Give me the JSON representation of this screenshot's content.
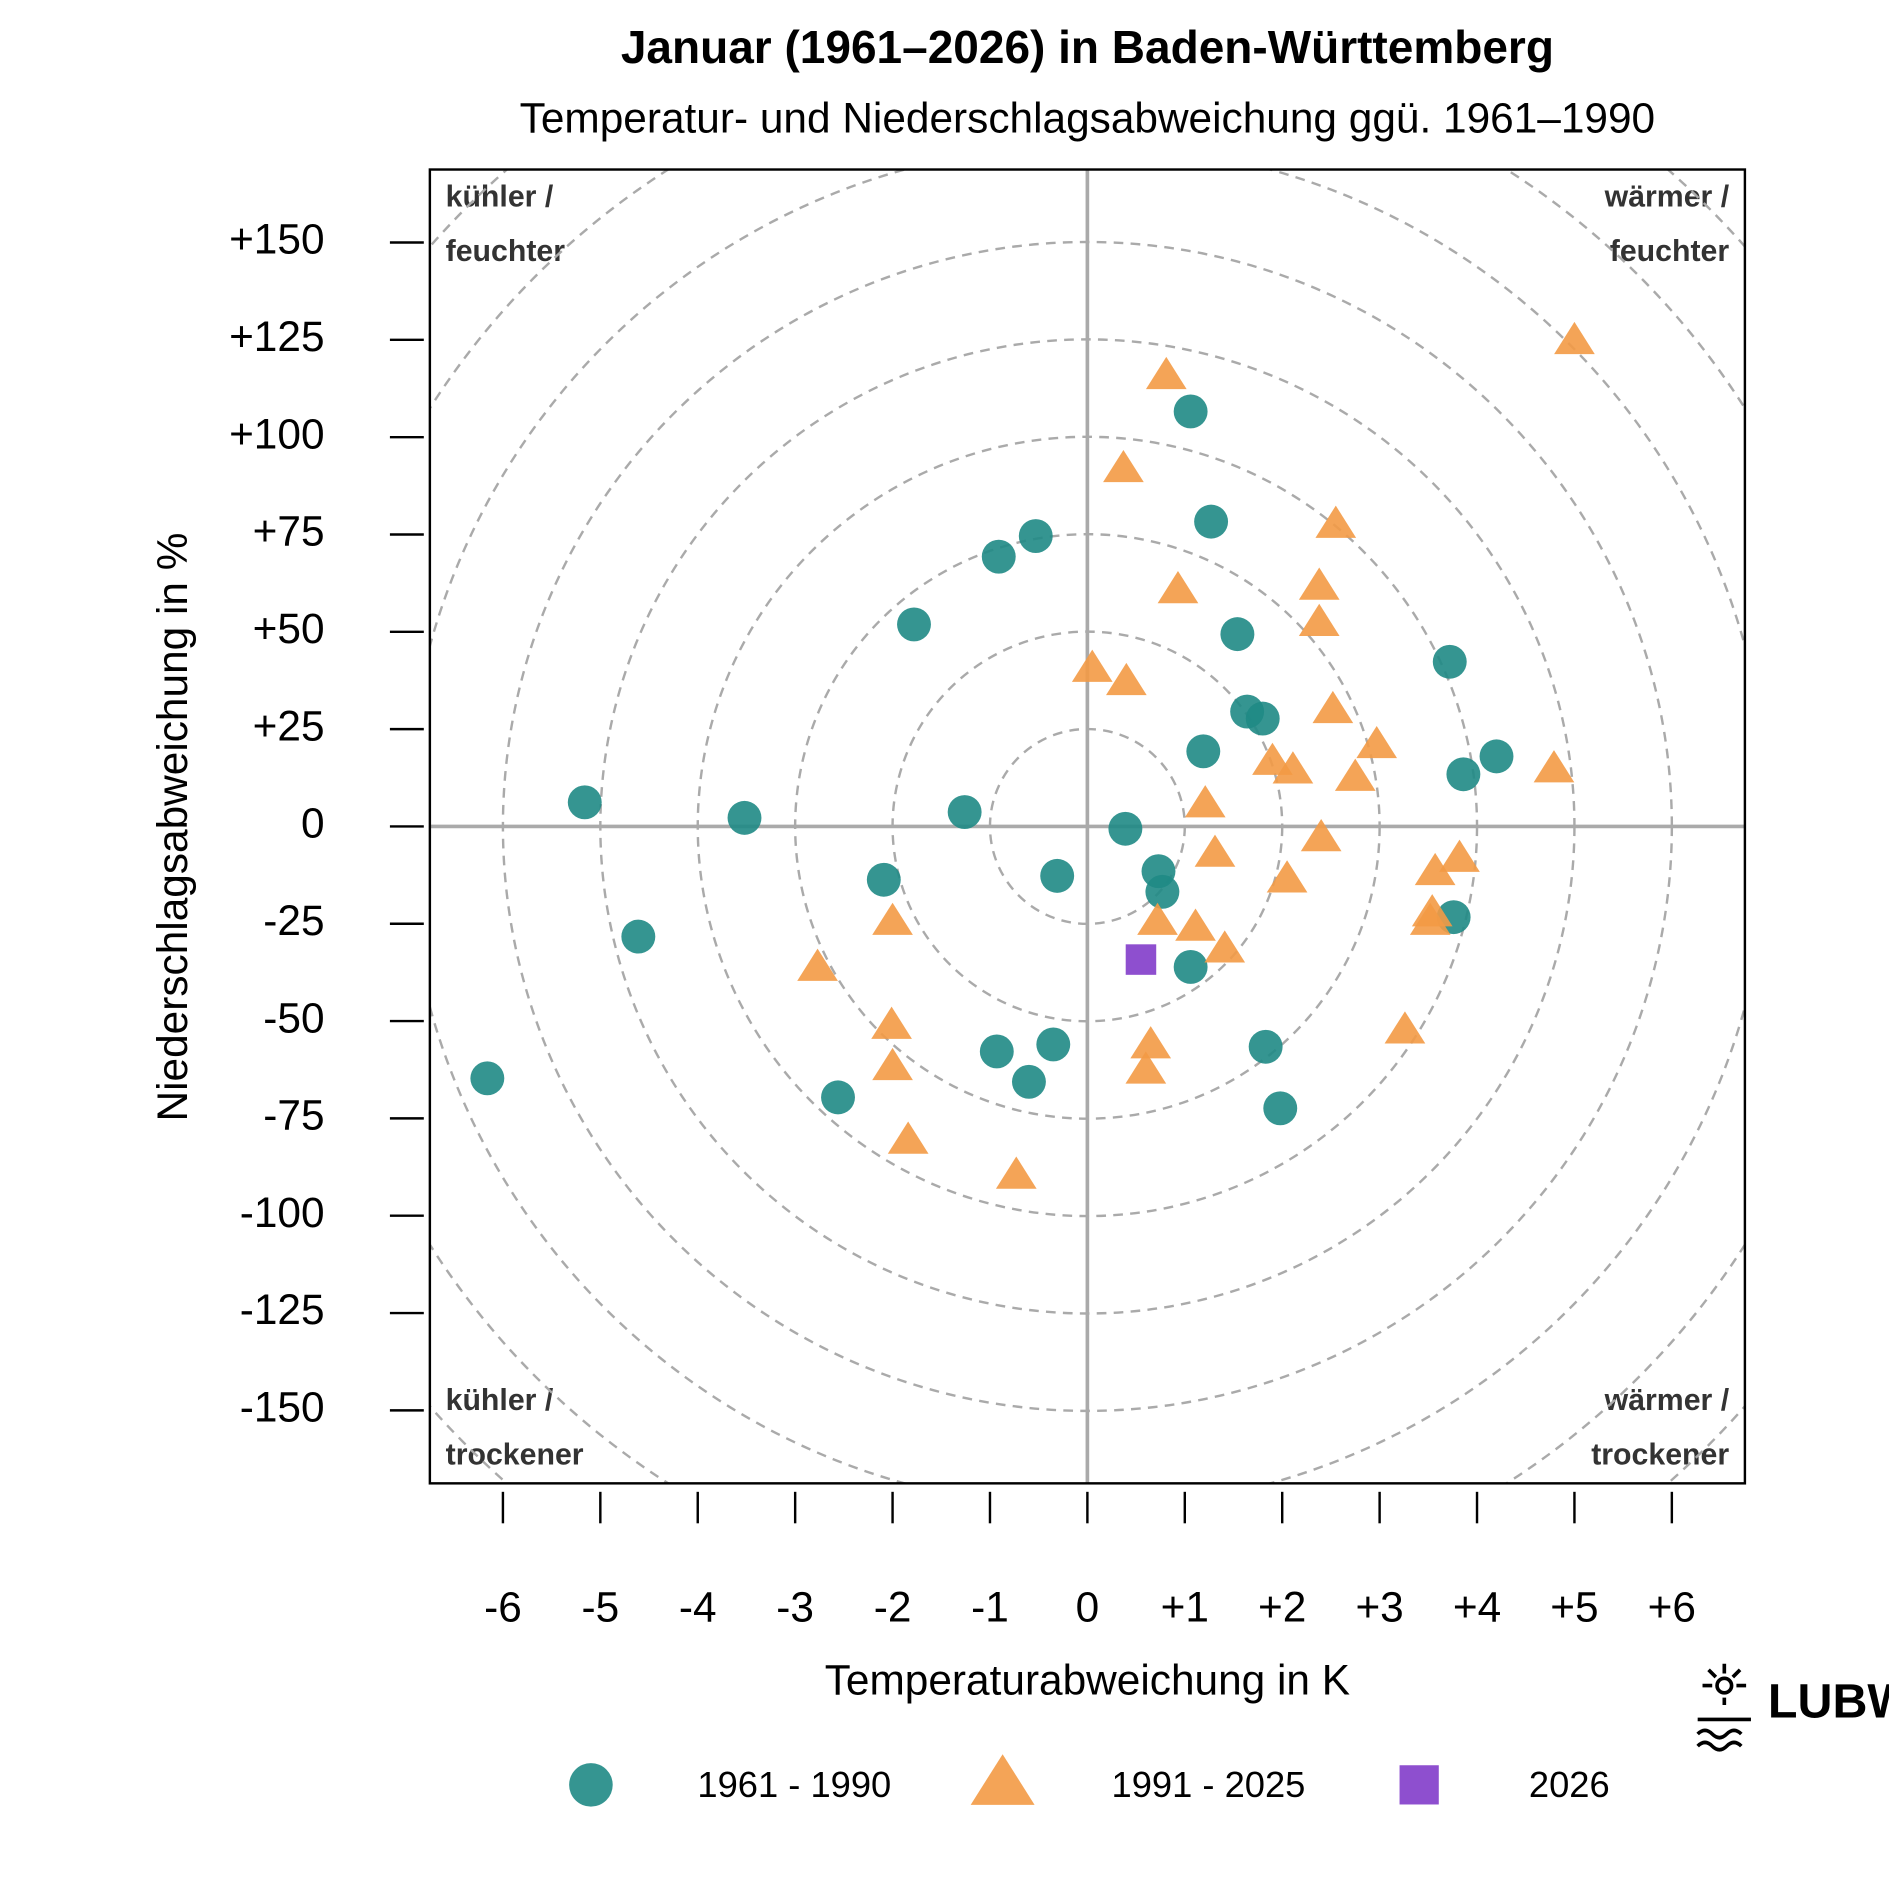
{
  "chart_data": {
    "type": "scatter",
    "title": "Januar (1961–2026) in Baden-Württemberg",
    "subtitle": "Temperatur- und Niederschlagsabweichung ggü. 1961–1990",
    "x_label": "Temperaturabweichung in K",
    "y_label": "Niederschlagsabweichung in %",
    "annotations": [
      "kühler /",
      "feuchter",
      "wärmer /",
      "feuchter",
      "kühler /",
      "trockener",
      "wärmer /",
      "trockener"
    ],
    "logo": "LUBW",
    "xlim": [
      -6.75,
      6.75
    ],
    "ylim": [
      -168.75,
      168.75
    ],
    "xticks": [
      -6,
      -5,
      -4,
      -3,
      -2,
      -1,
      0,
      {
        "value": 1,
        "label": "+1"
      },
      {
        "value": 2,
        "label": "+2"
      },
      {
        "value": 3,
        "label": "+3"
      },
      {
        "value": 4,
        "label": "+4"
      },
      {
        "value": 5,
        "label": "+5"
      },
      {
        "value": 6,
        "label": "+6"
      }
    ],
    "yticks": [
      -150,
      -125,
      -100,
      -75,
      -50,
      -25,
      0,
      {
        "value": 25,
        "label": "+25"
      },
      {
        "value": 50,
        "label": "+50"
      },
      {
        "value": 75,
        "label": "+75"
      },
      {
        "value": 100,
        "label": "+100"
      },
      {
        "value": 125,
        "label": "+125"
      },
      {
        "value": 150,
        "label": "+150"
      }
    ],
    "legend": "bottom",
    "series": [
      {
        "name": "1961 - 1990",
        "color": "#1f8a85",
        "marker": "circle",
        "x": [
          1.06,
          1.27,
          -0.53,
          -0.91,
          -1.78,
          1.54,
          3.72,
          1.64,
          1.8,
          1.19,
          4.2,
          3.86,
          -5.16,
          -3.52,
          -1.26,
          0.39,
          -0.31,
          -2.09,
          0.73,
          0.77,
          3.76,
          -4.61,
          1.06,
          -0.35,
          -0.93,
          1.83,
          -0.6,
          -6.16,
          -2.56,
          1.98
        ],
        "values": [
          106.6,
          78.3,
          74.6,
          69.3,
          51.9,
          49.4,
          42.3,
          29.5,
          27.7,
          19.3,
          18.0,
          13.4,
          6.2,
          2.2,
          3.7,
          -0.6,
          -12.7,
          -13.7,
          -11.5,
          -16.8,
          -23.3,
          -28.3,
          -36.1,
          -56.0,
          -57.8,
          -56.6,
          -65.6,
          -64.7,
          -69.6,
          -72.4
        ]
      },
      {
        "name": "1991 - 2025",
        "color": "#f39a45",
        "marker": "triangle",
        "x": [
          5.0,
          0.81,
          0.37,
          2.55,
          2.38,
          0.93,
          2.38,
          0.05,
          0.4,
          2.52,
          2.97,
          1.9,
          2.11,
          4.79,
          2.75,
          1.21,
          2.4,
          1.31,
          3.82,
          3.57,
          2.05,
          -2.0,
          0.72,
          1.11,
          3.52,
          3.54,
          1.41,
          -2.77,
          -2.01,
          3.26,
          0.65,
          -2.0,
          0.6,
          -1.84,
          -0.73
        ],
        "values": [
          124.6,
          115.6,
          91.7,
          77.4,
          61.5,
          60.6,
          52.2,
          40.4,
          37.0,
          29.8,
          20.8,
          16.5,
          14.3,
          14.6,
          12.4,
          5.6,
          -3.1,
          -7.1,
          -8.4,
          -11.8,
          -13.7,
          -24.6,
          -24.6,
          -26.1,
          -24.6,
          -22.4,
          -31.7,
          -36.4,
          -51.3,
          -52.5,
          -56.3,
          -61.9,
          -62.8,
          -80.8,
          -89.8
        ]
      },
      {
        "name": "2026",
        "color": "#8e4fcf",
        "marker": "square",
        "x": [
          0.55
        ],
        "values": [
          -34.2
        ]
      }
    ]
  }
}
